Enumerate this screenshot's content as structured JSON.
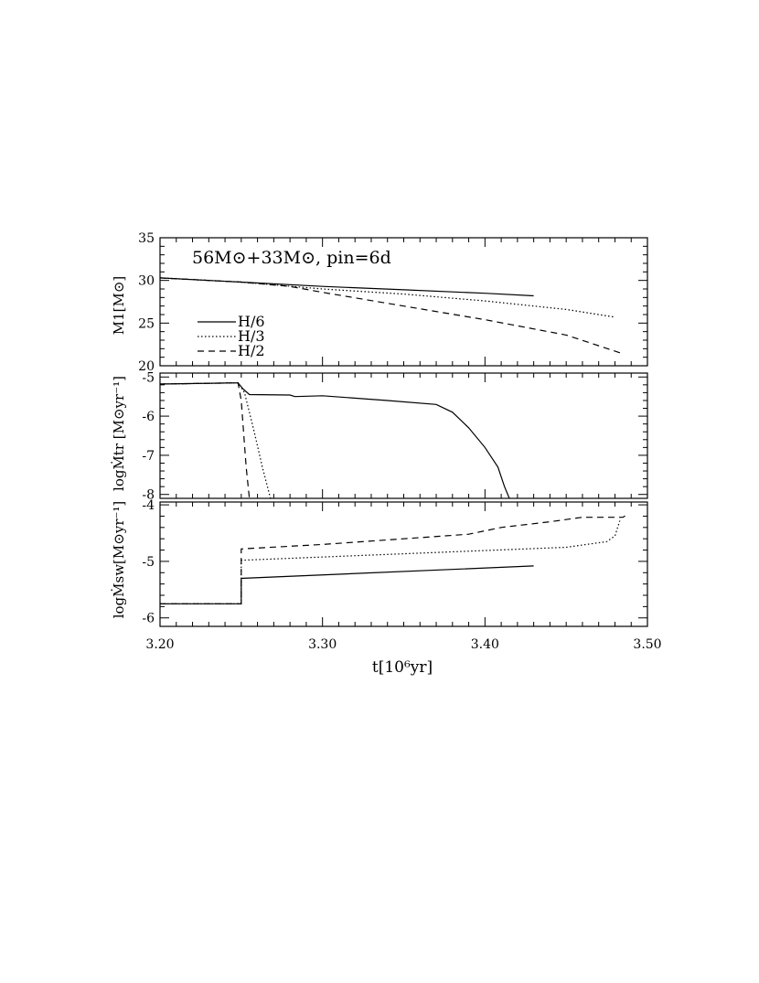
{
  "chart_data": [
    {
      "type": "line",
      "annotation": "56M⊙+33M⊙, pin=6d",
      "xlabel": "t[10⁶yr]",
      "ylabel": "M1[M⊙]",
      "xlim": [
        3.2,
        3.5
      ],
      "ylim": [
        20,
        35
      ],
      "y_ticks": [
        "20",
        "25",
        "30",
        "35"
      ],
      "legend": {
        "placement": "left",
        "entries": [
          "H/6",
          "H/3",
          "H/2"
        ]
      },
      "series": [
        {
          "name": "H/6",
          "style": "solid",
          "x": [
            3.2,
            3.25,
            3.3,
            3.35,
            3.4,
            3.43
          ],
          "y": [
            30.3,
            29.8,
            29.3,
            28.9,
            28.5,
            28.2
          ]
        },
        {
          "name": "H/3",
          "style": "dotted",
          "x": [
            3.2,
            3.25,
            3.3,
            3.35,
            3.4,
            3.45,
            3.48
          ],
          "y": [
            30.3,
            29.8,
            29.0,
            28.4,
            27.6,
            26.6,
            25.7
          ]
        },
        {
          "name": "H/2",
          "style": "dashed",
          "x": [
            3.2,
            3.25,
            3.28,
            3.3,
            3.35,
            3.4,
            3.45,
            3.485
          ],
          "y": [
            30.3,
            29.8,
            29.3,
            28.6,
            27.0,
            25.4,
            23.6,
            21.4
          ]
        }
      ]
    },
    {
      "type": "line",
      "ylabel": "logṀtr [M⊙yr⁻¹]",
      "xlim": [
        3.2,
        3.5
      ],
      "ylim": [
        -8.1,
        -4.9
      ],
      "y_ticks": [
        "-5",
        "-6",
        "-7",
        "-8"
      ],
      "series": [
        {
          "name": "H/6",
          "style": "solid",
          "x": [
            3.2,
            3.248,
            3.251,
            3.255,
            3.28,
            3.283,
            3.3,
            3.34,
            3.37,
            3.38,
            3.39,
            3.4,
            3.408,
            3.412,
            3.415
          ],
          "y": [
            -5.18,
            -5.15,
            -5.3,
            -5.45,
            -5.46,
            -5.5,
            -5.48,
            -5.6,
            -5.7,
            -5.9,
            -6.3,
            -6.8,
            -7.3,
            -7.8,
            -8.1
          ]
        },
        {
          "name": "H/3",
          "style": "dotted",
          "x": [
            3.2,
            3.248,
            3.252,
            3.258,
            3.263,
            3.268
          ],
          "y": [
            -5.18,
            -5.15,
            -5.4,
            -6.4,
            -7.3,
            -8.1
          ]
        },
        {
          "name": "H/2",
          "style": "dashed",
          "x": [
            3.2,
            3.248,
            3.25,
            3.253,
            3.255
          ],
          "y": [
            -5.18,
            -5.15,
            -5.6,
            -7.3,
            -8.1
          ]
        }
      ]
    },
    {
      "type": "line",
      "ylabel": "logṀsw[M⊙yr⁻¹]",
      "xlim": [
        3.2,
        3.5
      ],
      "ylim": [
        -6.15,
        -3.95
      ],
      "x_ticks": [
        "3.20",
        "3.30",
        "3.40",
        "3.50"
      ],
      "y_ticks": [
        "-4",
        "-5",
        "-6"
      ],
      "series": [
        {
          "name": "H/6",
          "style": "solid",
          "x": [
            3.2,
            3.25,
            3.25,
            3.43
          ],
          "y": [
            -5.75,
            -5.75,
            -5.3,
            -5.08
          ]
        },
        {
          "name": "H/3",
          "style": "dotted",
          "x": [
            3.2,
            3.25,
            3.25,
            3.45,
            3.475,
            3.48,
            3.483
          ],
          "y": [
            -5.75,
            -5.75,
            -4.98,
            -4.75,
            -4.65,
            -4.55,
            -4.28
          ]
        },
        {
          "name": "H/2",
          "style": "dashed",
          "x": [
            3.2,
            3.25,
            3.25,
            3.3,
            3.35,
            3.39,
            3.41,
            3.44,
            3.46,
            3.485,
            3.487
          ],
          "y": [
            -5.75,
            -5.75,
            -4.78,
            -4.7,
            -4.6,
            -4.52,
            -4.4,
            -4.3,
            -4.22,
            -4.22,
            -4.18
          ]
        }
      ]
    }
  ]
}
